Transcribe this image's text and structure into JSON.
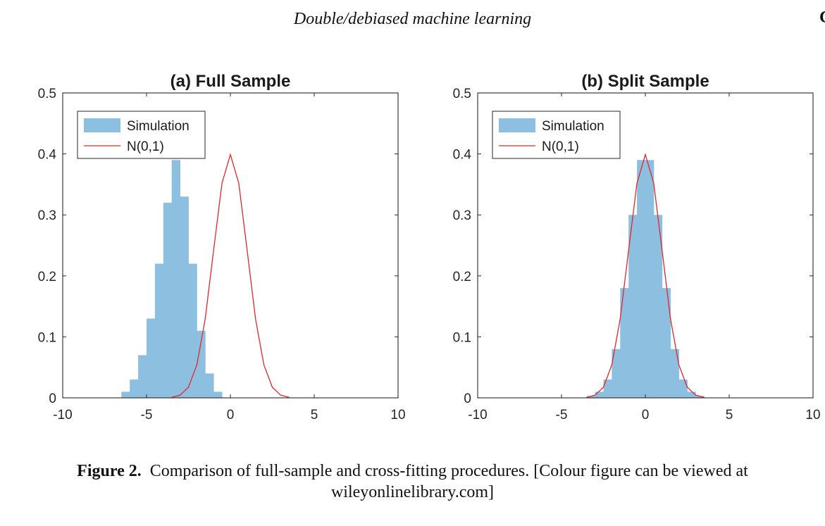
{
  "running_head": "Double/debiased machine learning",
  "edge_letter": "C",
  "caption": {
    "label": "Figure 2.",
    "text": "Comparison of full-sample and cross-fitting procedures. [Colour figure can be viewed at wileyonlinelibrary.com]"
  },
  "colors": {
    "histogram": "#8dbfe0",
    "curve": "#e0282a",
    "axis": "#262626"
  },
  "chart_data": [
    {
      "type": "bar",
      "title": "(a) Full Sample",
      "xlim": [
        -10,
        10
      ],
      "ylim": [
        0,
        0.5
      ],
      "x_ticks": [
        -10,
        -5,
        0,
        5,
        10
      ],
      "x_tick_labels": [
        "-10",
        "-5",
        "0",
        "5",
        "10"
      ],
      "y_ticks": [
        0,
        0.1,
        0.2,
        0.3,
        0.4,
        0.5
      ],
      "y_tick_labels": [
        "0",
        "0.1",
        "0.2",
        "0.3",
        "0.4",
        "0.5"
      ],
      "grid": false,
      "legend": {
        "position": "top-left",
        "entries": [
          "Simulation",
          "N(0,1)"
        ]
      },
      "series": [
        {
          "name": "Simulation",
          "kind": "histogram",
          "bins": [
            [
              -6.25,
              0.01
            ],
            [
              -5.75,
              0.03
            ],
            [
              -5.25,
              0.07
            ],
            [
              -4.75,
              0.13
            ],
            [
              -4.25,
              0.22
            ],
            [
              -3.75,
              0.32
            ],
            [
              -3.25,
              0.39
            ],
            [
              -2.75,
              0.33
            ],
            [
              -2.25,
              0.22
            ],
            [
              -1.75,
              0.11
            ],
            [
              -1.25,
              0.04
            ],
            [
              -0.75,
              0.01
            ]
          ]
        },
        {
          "name": "N(0,1)",
          "kind": "line",
          "points": [
            [
              -3.5,
              0.0009
            ],
            [
              -3.0,
              0.0044
            ],
            [
              -2.5,
              0.0175
            ],
            [
              -2.0,
              0.054
            ],
            [
              -1.5,
              0.1295
            ],
            [
              -1.0,
              0.242
            ],
            [
              -0.5,
              0.352
            ],
            [
              0.0,
              0.399
            ],
            [
              0.5,
              0.352
            ],
            [
              1.0,
              0.242
            ],
            [
              1.5,
              0.1295
            ],
            [
              2.0,
              0.054
            ],
            [
              2.5,
              0.0175
            ],
            [
              3.0,
              0.0044
            ],
            [
              3.5,
              0.0009
            ]
          ]
        }
      ]
    },
    {
      "type": "bar",
      "title": "(b) Split Sample",
      "xlim": [
        -10,
        10
      ],
      "ylim": [
        0,
        0.5
      ],
      "x_ticks": [
        -10,
        -5,
        0,
        5,
        10
      ],
      "x_tick_labels": [
        "-10",
        "-5",
        "0",
        "5",
        "10"
      ],
      "y_ticks": [
        0,
        0.1,
        0.2,
        0.3,
        0.4,
        0.5
      ],
      "y_tick_labels": [
        "0",
        "0.1",
        "0.2",
        "0.3",
        "0.4",
        "0.5"
      ],
      "grid": false,
      "legend": {
        "position": "top-left",
        "entries": [
          "Simulation",
          "N(0,1)"
        ]
      },
      "series": [
        {
          "name": "Simulation",
          "kind": "histogram",
          "bins": [
            [
              -3.25,
              0.003
            ],
            [
              -2.75,
              0.01
            ],
            [
              -2.25,
              0.03
            ],
            [
              -1.75,
              0.08
            ],
            [
              -1.25,
              0.18
            ],
            [
              -0.75,
              0.3
            ],
            [
              -0.25,
              0.39
            ],
            [
              0.25,
              0.39
            ],
            [
              0.75,
              0.3
            ],
            [
              1.25,
              0.18
            ],
            [
              1.75,
              0.08
            ],
            [
              2.25,
              0.03
            ],
            [
              2.75,
              0.01
            ],
            [
              3.25,
              0.003
            ]
          ]
        },
        {
          "name": "N(0,1)",
          "kind": "line",
          "points": [
            [
              -3.5,
              0.0009
            ],
            [
              -3.0,
              0.0044
            ],
            [
              -2.5,
              0.0175
            ],
            [
              -2.0,
              0.054
            ],
            [
              -1.5,
              0.1295
            ],
            [
              -1.0,
              0.242
            ],
            [
              -0.5,
              0.352
            ],
            [
              0.0,
              0.399
            ],
            [
              0.5,
              0.352
            ],
            [
              1.0,
              0.242
            ],
            [
              1.5,
              0.1295
            ],
            [
              2.0,
              0.054
            ],
            [
              2.5,
              0.0175
            ],
            [
              3.0,
              0.0044
            ],
            [
              3.5,
              0.0009
            ]
          ]
        }
      ]
    }
  ]
}
